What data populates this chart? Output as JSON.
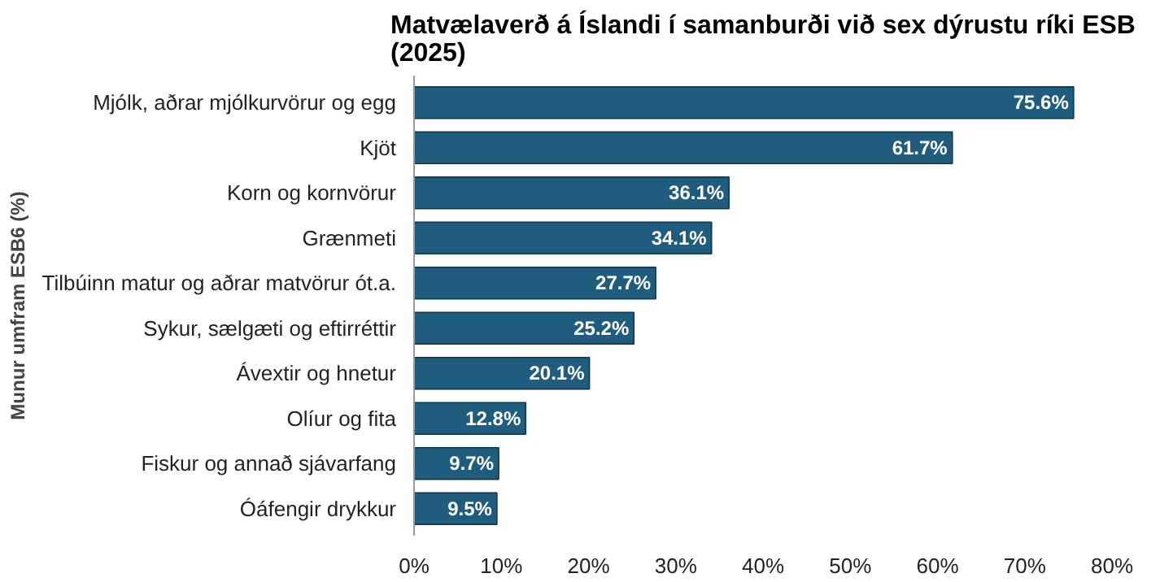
{
  "chart_data": {
    "type": "bar",
    "orientation": "horizontal",
    "title": "Matvælaverð á Íslandi í samanburði við sex dýrustu ríki ESB\n(2025)",
    "ylabel": "Munur umfram ESB6 (%)",
    "categories": [
      "Mjólk, aðrar mjólkurvörur og egg",
      "Kjöt",
      "Korn og kornvörur",
      "Grænmeti",
      "Tilbúinn matur og aðrar matvörur ót.a.",
      "Sykur, sælgæti og eftirréttir",
      "Ávextir og hnetur",
      "Olíur og fita",
      "Fiskur og annað sjávarfang",
      "Óáfengir drykkur"
    ],
    "values": [
      75.6,
      61.7,
      36.1,
      34.1,
      27.7,
      25.2,
      20.1,
      12.8,
      9.7,
      9.5
    ],
    "value_labels": [
      "75.6%",
      "61.7%",
      "36.1%",
      "34.1%",
      "27.7%",
      "25.2%",
      "20.1%",
      "12.8%",
      "9.7%",
      "9.5%"
    ],
    "color": "#1f5c7e",
    "xlim": [
      0,
      80
    ],
    "xticks": [
      {
        "value": 0,
        "label": "0%"
      },
      {
        "value": 10,
        "label": "10%"
      },
      {
        "value": 20,
        "label": "20%"
      },
      {
        "value": 30,
        "label": "30%"
      },
      {
        "value": 40,
        "label": "40%"
      },
      {
        "value": 50,
        "label": "50%"
      },
      {
        "value": 60,
        "label": "60%"
      },
      {
        "value": 70,
        "label": "70%"
      },
      {
        "value": 80,
        "label": "80%"
      }
    ],
    "grid": false
  }
}
